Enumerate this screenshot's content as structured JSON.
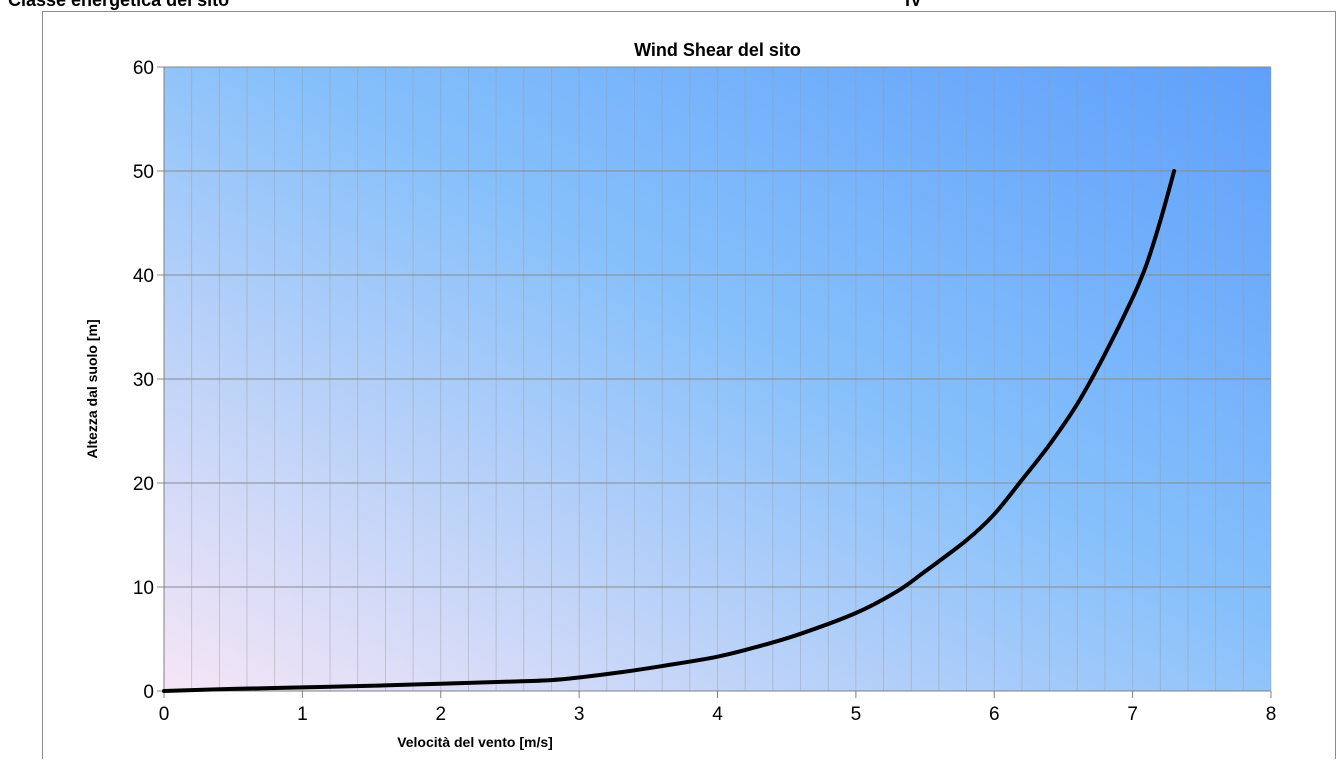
{
  "header": {
    "left_label": "Classe energetica del sito",
    "right_label": "IV"
  },
  "chart_data": {
    "type": "line",
    "title": "Wind Shear del sito",
    "xlabel": "Velocità del vento [m/s]",
    "ylabel": "Altezza dal suolo [m]",
    "xlim": [
      0,
      8
    ],
    "ylim": [
      0,
      60
    ],
    "x_ticks": [
      0,
      1,
      2,
      3,
      4,
      5,
      6,
      7,
      8
    ],
    "y_ticks": [
      0,
      10,
      20,
      30,
      40,
      50,
      60
    ],
    "grid": true,
    "legend": "none",
    "background": "gradient pink to blue",
    "colors": {
      "line": "#000000",
      "grid": "#9a9a9a",
      "bg_start": "#f6e6f6",
      "bg_mid": "#86c0fb",
      "bg_end": "#5fa0fb"
    },
    "series": [
      {
        "x": [
          0,
          0.5,
          1,
          1.5,
          2,
          2.5,
          2.8,
          3,
          3.3,
          3.6,
          4,
          4.3,
          4.6,
          5,
          5.3,
          5.5,
          5.8,
          6,
          6.2,
          6.4,
          6.6,
          6.8,
          7,
          7.1,
          7.2,
          7.3
        ],
        "y": [
          0,
          0.2,
          0.35,
          0.5,
          0.7,
          0.9,
          1.05,
          1.3,
          1.8,
          2.4,
          3.3,
          4.3,
          5.5,
          7.5,
          9.6,
          11.5,
          14.5,
          17,
          20.3,
          23.7,
          27.6,
          32.4,
          37.8,
          41,
          45.2,
          50
        ]
      }
    ]
  }
}
